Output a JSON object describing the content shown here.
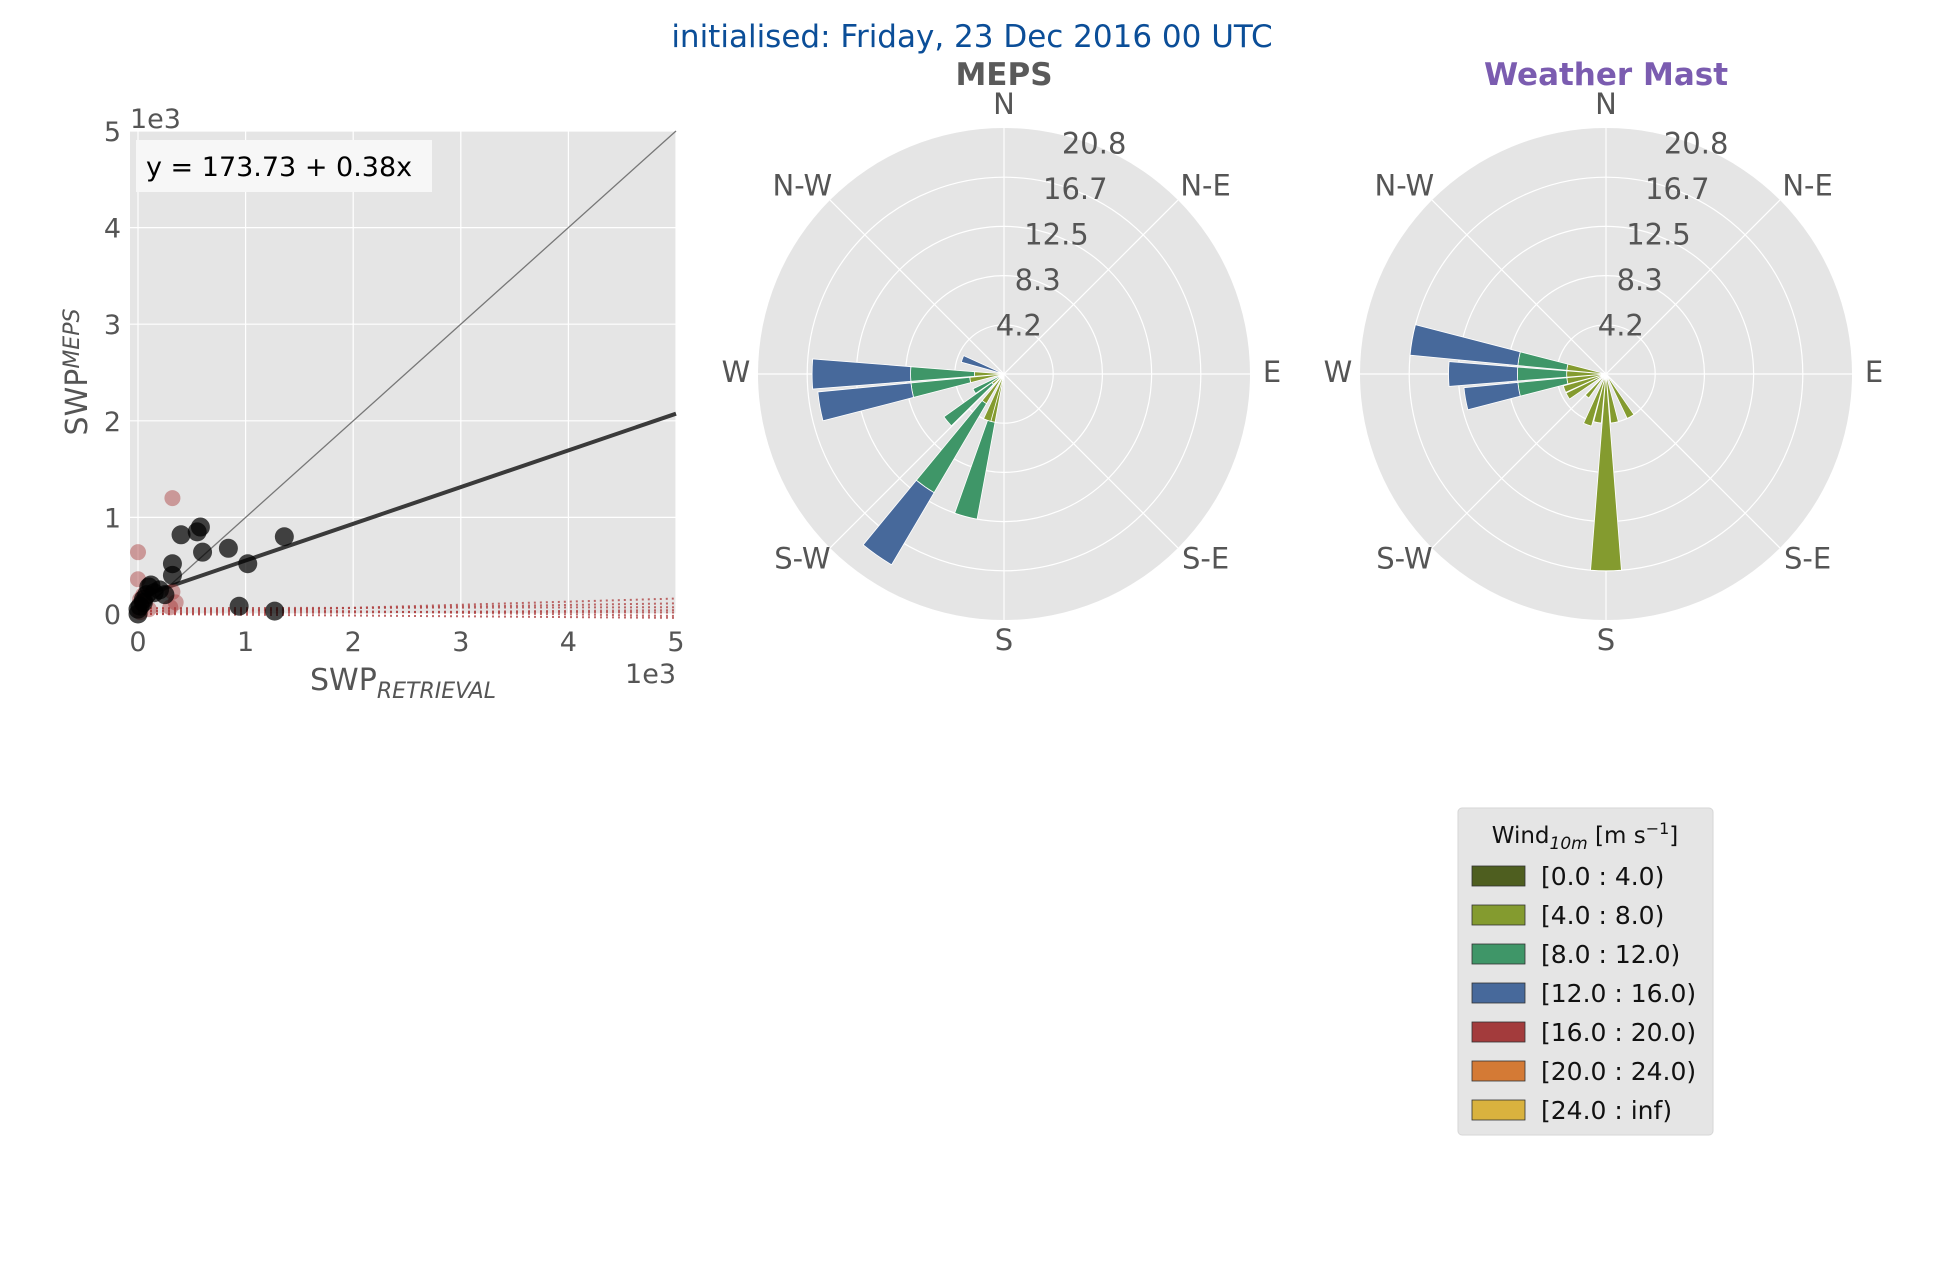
{
  "figure": {
    "title": "initialised: Friday, 23 Dec 2016 00 UTC"
  },
  "chart_data": [
    {
      "type": "scatter",
      "xlabel": "SWP",
      "xlabel_sub": "RETRIEVAL",
      "ylabel": "SWP",
      "ylabel_sub": "MEPS",
      "x_offset_label": "1e3",
      "y_offset_label": "1e3",
      "xlim": [
        0,
        5
      ],
      "ylim": [
        0,
        5
      ],
      "xticks": [
        "0",
        "1",
        "2",
        "3",
        "4",
        "5"
      ],
      "yticks": [
        "0",
        "1",
        "2",
        "3",
        "4",
        "5"
      ],
      "grid": true,
      "equation": "y = 173.73 + 0.38x",
      "fit_line": {
        "intercept": 0.17373,
        "slope": 0.38,
        "color": "#3a3a3a"
      },
      "one_to_one_line": {
        "color": "#777777"
      },
      "series": [
        {
          "color": "#000000",
          "points": [
            [
              0.0,
              0.0
            ],
            [
              0.02,
              0.08
            ],
            [
              0.05,
              0.15
            ],
            [
              0.08,
              0.2
            ],
            [
              0.1,
              0.28
            ],
            [
              0.12,
              0.3
            ],
            [
              0.15,
              0.22
            ],
            [
              0.2,
              0.25
            ],
            [
              0.25,
              0.2
            ],
            [
              0.32,
              0.4
            ],
            [
              0.32,
              0.52
            ],
            [
              0.4,
              0.82
            ],
            [
              0.55,
              0.85
            ],
            [
              0.58,
              0.9
            ],
            [
              0.6,
              0.64
            ],
            [
              0.84,
              0.68
            ],
            [
              1.02,
              0.52
            ],
            [
              0.94,
              0.08
            ],
            [
              1.27,
              0.03
            ],
            [
              1.36,
              0.8
            ],
            [
              0.05,
              0.12
            ],
            [
              0.0,
              0.05
            ]
          ]
        },
        {
          "color": "#a83a3a",
          "points": [
            [
              0.32,
              1.2
            ],
            [
              0.0,
              0.64
            ],
            [
              0.0,
              0.36
            ],
            [
              0.02,
              0.15
            ],
            [
              0.32,
              0.23
            ],
            [
              0.3,
              0.07
            ],
            [
              0.35,
              0.12
            ],
            [
              0.05,
              0.2
            ],
            [
              0.1,
              0.05
            ],
            [
              0.02,
              0.02
            ]
          ]
        }
      ],
      "dotted_line_values": [
        0.16,
        0.11,
        0.07,
        0.04,
        0.015,
        -0.02,
        -0.04
      ]
    },
    {
      "type": "windrose",
      "title": "MEPS",
      "title_color": "#5a5a5a",
      "directions": [
        "N",
        "N-E",
        "E",
        "S-E",
        "S",
        "S-W",
        "W",
        "N-W"
      ],
      "rlabels": [
        "4.2",
        "8.3",
        "12.5",
        "16.7",
        "20.8"
      ],
      "rmax": 25,
      "bars": [
        {
          "dir": 260,
          "segments": [
            {
              "bin": 1,
              "to": 3.5
            },
            {
              "bin": 2,
              "to": 9.5
            },
            {
              "bin": 3,
              "to": 19.0
            }
          ]
        },
        {
          "dir": 270,
          "segments": [
            {
              "bin": 1,
              "to": 3.0
            },
            {
              "bin": 2,
              "to": 9.5
            },
            {
              "bin": 3,
              "to": 19.5
            }
          ]
        },
        {
          "dir": 290,
          "segments": [
            {
              "bin": 3,
              "to": 4.5
            }
          ]
        },
        {
          "dir": 240,
          "segments": [
            {
              "bin": 2,
              "to": 3.5
            }
          ]
        },
        {
          "dir": 230,
          "segments": [
            {
              "bin": 1,
              "to": 1.5
            },
            {
              "bin": 2,
              "to": 7.5
            }
          ]
        },
        {
          "dir": 215,
          "segments": [
            {
              "bin": 1,
              "to": 3.5
            },
            {
              "bin": 2,
              "to": 14.0
            },
            {
              "bin": 3,
              "to": 22.5
            }
          ]
        },
        {
          "dir": 195,
          "segments": [
            {
              "bin": 1,
              "to": 5.0
            },
            {
              "bin": 2,
              "to": 15.0
            }
          ]
        },
        {
          "dir": 200,
          "segments": [
            {
              "bin": 1,
              "to": 5.0
            }
          ]
        }
      ]
    },
    {
      "type": "windrose",
      "title": "Weather Mast",
      "title_color": "#7b5cb0",
      "directions": [
        "N",
        "N-E",
        "E",
        "S-E",
        "S",
        "S-W",
        "W",
        "N-W"
      ],
      "rlabels": [
        "4.2",
        "8.3",
        "12.5",
        "16.7",
        "20.8"
      ],
      "rmax": 25,
      "bars": [
        {
          "dir": 280,
          "segments": [
            {
              "bin": 1,
              "to": 4.0
            },
            {
              "bin": 2,
              "to": 9.0
            },
            {
              "bin": 3,
              "to": 20.0
            }
          ]
        },
        {
          "dir": 270,
          "segments": [
            {
              "bin": 1,
              "to": 4.0
            },
            {
              "bin": 2,
              "to": 9.0
            },
            {
              "bin": 3,
              "to": 16.0
            }
          ]
        },
        {
          "dir": 260,
          "segments": [
            {
              "bin": 1,
              "to": 4.0
            },
            {
              "bin": 2,
              "to": 9.0
            },
            {
              "bin": 3,
              "to": 14.5
            }
          ]
        },
        {
          "dir": 250,
          "segments": [
            {
              "bin": 1,
              "to": 4.5
            }
          ]
        },
        {
          "dir": 240,
          "segments": [
            {
              "bin": 1,
              "to": 4.5
            }
          ]
        },
        {
          "dir": 220,
          "segments": [
            {
              "bin": 1,
              "to": 3.0
            }
          ]
        },
        {
          "dir": 200,
          "segments": [
            {
              "bin": 1,
              "to": 5.5
            }
          ]
        },
        {
          "dir": 190,
          "segments": [
            {
              "bin": 1,
              "to": 5.0
            }
          ]
        },
        {
          "dir": 180,
          "segments": [
            {
              "bin": 1,
              "to": 20.0
            }
          ]
        },
        {
          "dir": 170,
          "segments": [
            {
              "bin": 1,
              "to": 5.0
            }
          ]
        },
        {
          "dir": 150,
          "segments": [
            {
              "bin": 1,
              "to": 5.0
            }
          ]
        }
      ]
    }
  ],
  "legend": {
    "title_main": "Wind",
    "title_sub": "10m",
    "title_unit_pre": " [m s",
    "title_sup": "−1",
    "title_unit_post": "]",
    "entries": [
      {
        "label": "[0.0 : 4.0)",
        "color": "#4e5e1f"
      },
      {
        "label": "[4.0 : 8.0)",
        "color": "#849b2f"
      },
      {
        "label": "[8.0 : 12.0)",
        "color": "#3f9668"
      },
      {
        "label": "[12.0 : 16.0)",
        "color": "#47699b"
      },
      {
        "label": "[16.0 : 20.0)",
        "color": "#a33b3c"
      },
      {
        "label": "[20.0 : 24.0)",
        "color": "#d47a35"
      },
      {
        "label": "[24.0 : inf)",
        "color": "#d9b23e"
      }
    ]
  }
}
